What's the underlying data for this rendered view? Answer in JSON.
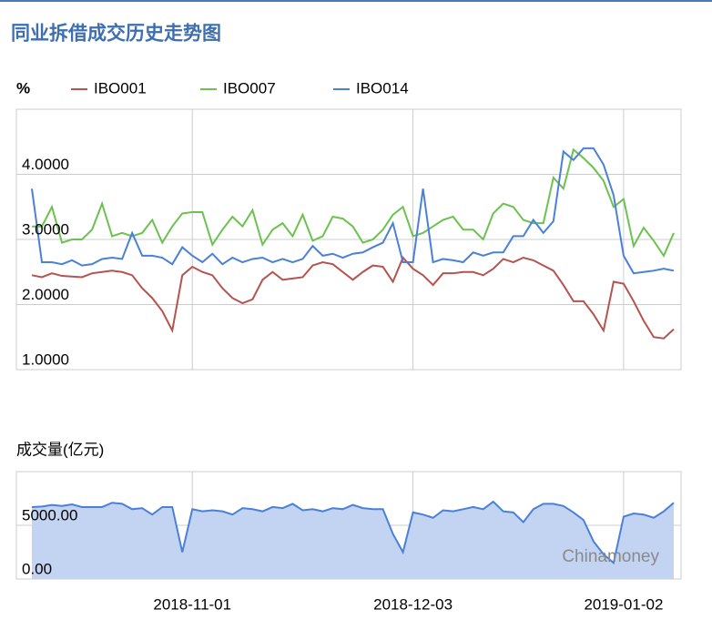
{
  "chart_data": [
    {
      "type": "line",
      "title": "同业拆借成交历史走势图",
      "y_label": "%",
      "ylim": [
        1,
        5
      ],
      "yticks": [
        {
          "value": 1,
          "label": "1.0000"
        },
        {
          "value": 2,
          "label": "2.0000"
        },
        {
          "value": 3,
          "label": "3.0000"
        },
        {
          "value": 4,
          "label": "4.0000"
        }
      ],
      "grid": true,
      "legend": "top",
      "series": [
        {
          "name": "IBO001",
          "color": "#b5534f",
          "values": [
            2.45,
            2.42,
            2.48,
            2.44,
            2.43,
            2.42,
            2.48,
            2.5,
            2.52,
            2.5,
            2.45,
            2.25,
            2.1,
            1.9,
            1.6,
            2.45,
            2.58,
            2.5,
            2.45,
            2.25,
            2.1,
            2.02,
            2.08,
            2.38,
            2.5,
            2.38,
            2.4,
            2.42,
            2.6,
            2.65,
            2.62,
            2.5,
            2.38,
            2.5,
            2.6,
            2.58,
            2.35,
            2.72,
            2.55,
            2.45,
            2.3,
            2.48,
            2.48,
            2.5,
            2.5,
            2.45,
            2.55,
            2.7,
            2.65,
            2.72,
            2.68,
            2.6,
            2.52,
            2.3,
            2.05,
            2.05,
            1.85,
            1.6,
            2.35,
            2.32,
            2.05,
            1.75,
            1.5,
            1.48,
            1.62
          ]
        },
        {
          "name": "IBO007",
          "color": "#6cc24f",
          "values": [
            3.2,
            3.2,
            3.5,
            2.95,
            3.0,
            3.0,
            3.15,
            3.55,
            3.05,
            3.1,
            3.05,
            3.1,
            3.3,
            2.95,
            3.2,
            3.4,
            3.42,
            3.42,
            2.92,
            3.15,
            3.35,
            3.2,
            3.45,
            2.92,
            3.15,
            3.25,
            3.05,
            3.38,
            2.98,
            3.05,
            3.35,
            3.32,
            3.2,
            2.95,
            3.0,
            3.15,
            3.38,
            3.5,
            3.05,
            3.1,
            3.2,
            3.3,
            3.35,
            3.15,
            3.15,
            3.0,
            3.4,
            3.55,
            3.5,
            3.3,
            3.25,
            3.25,
            3.95,
            3.78,
            4.38,
            4.25,
            4.1,
            3.9,
            3.5,
            3.62,
            2.9,
            3.18,
            2.98,
            2.75,
            3.1
          ]
        },
        {
          "name": "IBO014",
          "color": "#4a80d8",
          "values": [
            3.78,
            2.65,
            2.65,
            2.62,
            2.68,
            2.6,
            2.62,
            2.7,
            2.72,
            2.7,
            3.1,
            2.75,
            2.75,
            2.72,
            2.62,
            2.88,
            2.75,
            2.65,
            2.78,
            2.62,
            2.72,
            2.65,
            2.7,
            2.72,
            2.65,
            2.7,
            2.65,
            2.7,
            2.9,
            2.75,
            2.78,
            2.72,
            2.78,
            2.8,
            2.88,
            2.95,
            3.25,
            2.65,
            2.65,
            3.78,
            2.65,
            2.7,
            2.68,
            2.65,
            2.8,
            2.75,
            2.8,
            2.8,
            3.05,
            3.05,
            3.3,
            3.1,
            3.28,
            4.35,
            4.22,
            4.4,
            4.4,
            4.15,
            3.68,
            2.75,
            2.48,
            2.5,
            2.52,
            2.55,
            2.52
          ]
        }
      ]
    },
    {
      "type": "area",
      "title": "成交量(亿元)",
      "annotation": "Chinamoney",
      "color": "#4a80d8",
      "fill": "#c3d4f3",
      "ylim": [
        0,
        10000
      ],
      "yticks": [
        {
          "value": 0,
          "label": "0.00"
        },
        {
          "value": 5000,
          "label": "5000.00"
        }
      ],
      "grid": true,
      "categories": [
        null,
        null,
        null,
        null,
        null,
        null,
        null,
        null,
        null,
        null,
        null,
        null,
        null,
        null,
        null,
        null,
        "2018-11-01",
        null,
        null,
        null,
        null,
        null,
        null,
        null,
        null,
        null,
        null,
        null,
        null,
        null,
        null,
        null,
        null,
        null,
        null,
        null,
        null,
        null,
        "2018-12-03",
        null,
        null,
        null,
        null,
        null,
        null,
        null,
        null,
        null,
        null,
        null,
        null,
        null,
        null,
        null,
        null,
        null,
        null,
        null,
        null,
        "2019-01-02",
        null,
        null,
        null,
        null,
        null
      ],
      "values": [
        6700,
        6750,
        6900,
        6800,
        6950,
        6700,
        6700,
        6700,
        7100,
        7000,
        6500,
        6600,
        6000,
        6700,
        6700,
        2500,
        6500,
        6300,
        6400,
        6300,
        6000,
        6600,
        6500,
        6300,
        6700,
        6600,
        7000,
        6400,
        6500,
        6300,
        6600,
        6500,
        6900,
        6600,
        6500,
        6500,
        4200,
        2500,
        6200,
        6000,
        5700,
        6400,
        6300,
        6500,
        6700,
        6500,
        7200,
        6300,
        6200,
        5300,
        6500,
        7000,
        7000,
        6800,
        6200,
        5500,
        3500,
        2300,
        1500,
        5800,
        6100,
        6000,
        5700,
        6300,
        7100
      ]
    }
  ]
}
